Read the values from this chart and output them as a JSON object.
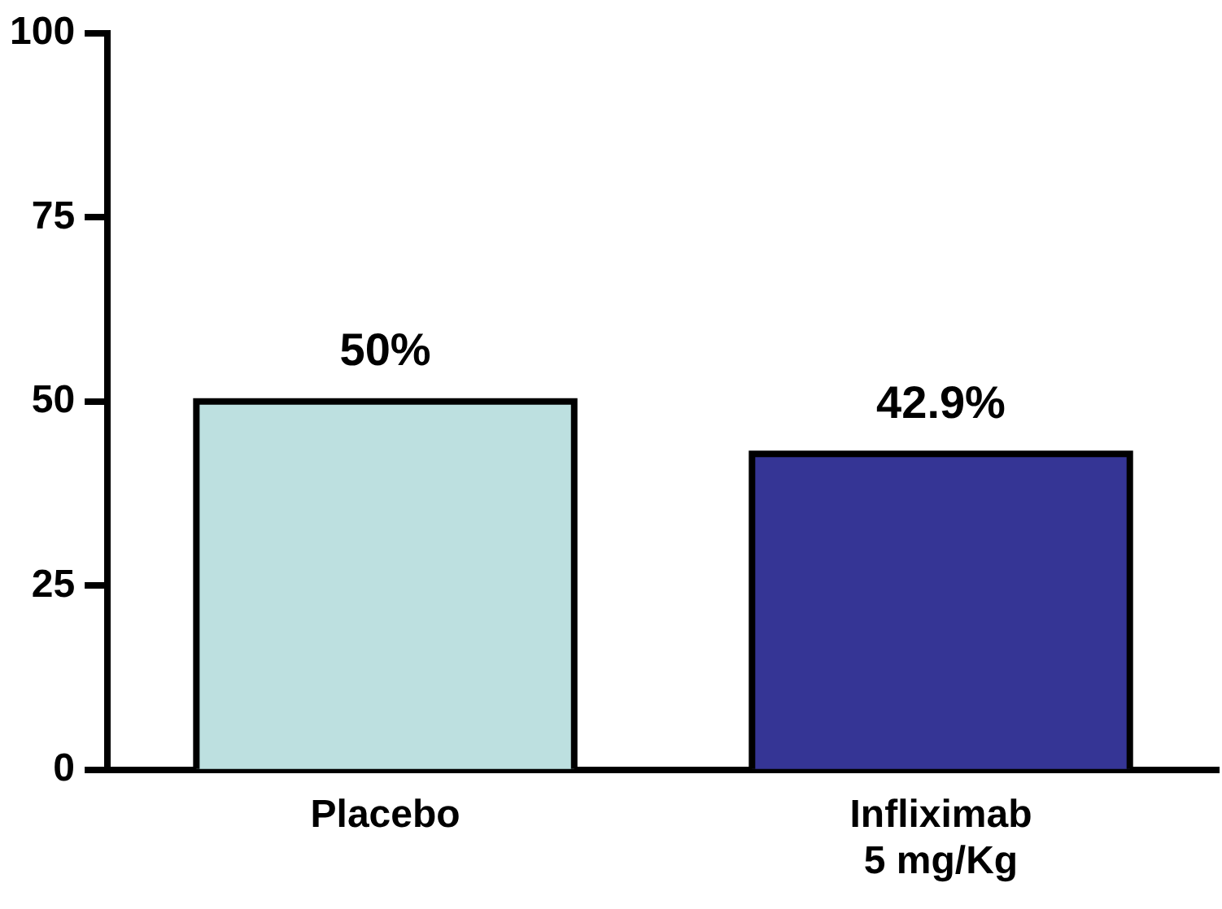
{
  "chart_data": {
    "type": "bar",
    "categories": [
      "Placebo",
      "Infliximab\n5 mg/Kg"
    ],
    "values": [
      50,
      42.9
    ],
    "colors": [
      "#bde0e0",
      "#353595"
    ],
    "value_labels": [
      "50%",
      "42.9%"
    ],
    "ylim": [
      0,
      100
    ],
    "yticks": [
      0,
      25,
      50,
      75,
      100
    ],
    "grid": false,
    "legend": false
  }
}
